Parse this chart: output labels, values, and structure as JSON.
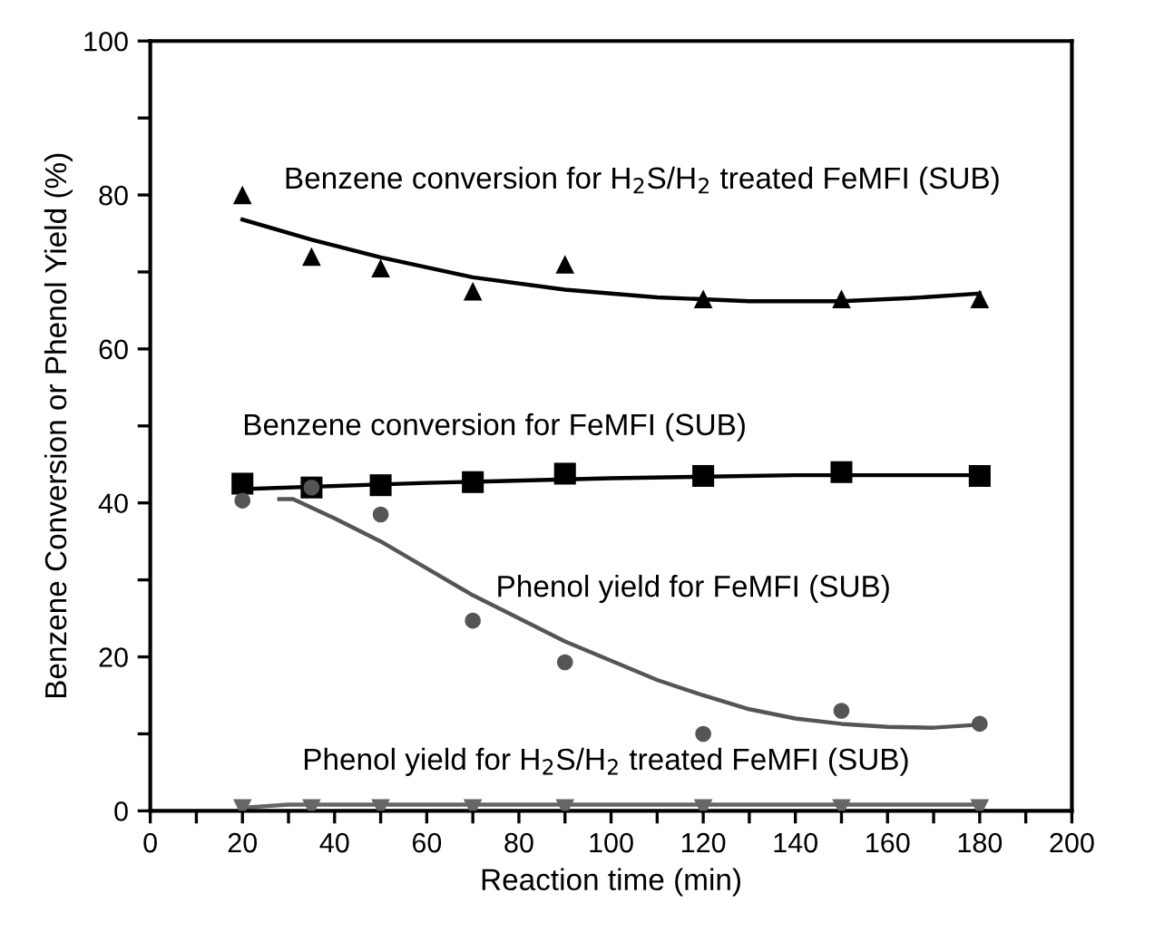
{
  "chart_data": {
    "type": "scatter",
    "xlabel": "Reaction time (min)",
    "ylabel": "Benzene Conversion or Phenol Yield (%)",
    "xlim": [
      0,
      200
    ],
    "ylim": [
      0,
      100
    ],
    "xticks": [
      0,
      {
        "value": 10,
        "label": null
      },
      20,
      {
        "value": 30,
        "label": null
      },
      40,
      {
        "value": 50,
        "label": null
      },
      60,
      {
        "value": 70,
        "label": null
      },
      80,
      {
        "value": 90,
        "label": null
      },
      100,
      {
        "value": 110,
        "label": null
      },
      120,
      {
        "value": 130,
        "label": null
      },
      140,
      {
        "value": 150,
        "label": null
      },
      160,
      {
        "value": 170,
        "label": null
      },
      180,
      {
        "value": 190,
        "label": null
      },
      200
    ],
    "yticks": [
      0,
      {
        "value": 10,
        "label": null
      },
      20,
      {
        "value": 30,
        "label": null
      },
      40,
      {
        "value": 50,
        "label": null
      },
      60,
      {
        "value": 70,
        "label": null
      },
      80,
      {
        "value": 90,
        "label": null
      },
      100
    ],
    "grid": false,
    "legend": false,
    "series": [
      {
        "marker": "triangle",
        "color": "#000000",
        "x": [
          20,
          35,
          50,
          70,
          90,
          120,
          150,
          180
        ],
        "values": [
          80,
          72,
          70.5,
          67.5,
          71,
          66.5,
          66.5,
          66.5
        ]
      },
      {
        "marker": "square",
        "color": "#000000",
        "x": [
          20,
          35,
          50,
          70,
          90,
          120,
          150,
          180
        ],
        "values": [
          42.5,
          42,
          42.3,
          42.7,
          43.8,
          43.5,
          44,
          43.5
        ]
      },
      {
        "marker": "circle",
        "color": "#555555",
        "x": [
          20,
          35,
          50,
          70,
          90,
          120,
          150,
          180
        ],
        "values": [
          40.3,
          42,
          38.5,
          24.7,
          19.3,
          10,
          13,
          11.3
        ]
      },
      {
        "marker": "triangle_down",
        "color": "#666666",
        "x": [
          20,
          35,
          50,
          70,
          90,
          120,
          150,
          180
        ],
        "values": [
          0.3,
          0.3,
          0.3,
          0.3,
          0.3,
          0.3,
          0.3,
          0.3
        ]
      },
      {
        "type": "line",
        "marker": "none",
        "color": "#000000",
        "x": [
          20,
          35,
          50,
          70,
          90,
          110,
          130,
          150,
          165,
          180
        ],
        "values": [
          76.8,
          74.2,
          71.9,
          69.3,
          67.7,
          66.7,
          66.2,
          66.2,
          66.6,
          67.2
        ]
      },
      {
        "type": "line",
        "marker": "none",
        "color": "#000000",
        "x": [
          20,
          60,
          100,
          140,
          180
        ],
        "values": [
          41.8,
          42.6,
          43.2,
          43.6,
          43.6
        ]
      },
      {
        "type": "line",
        "marker": "none",
        "color": "#555555",
        "x": [
          28,
          31,
          40,
          50,
          60,
          70,
          80,
          90,
          100,
          110,
          120,
          130,
          140,
          150,
          160,
          170,
          180
        ],
        "values": [
          40.5,
          40.5,
          38,
          35,
          31.5,
          28,
          25,
          22,
          19.5,
          17,
          15,
          13.2,
          12,
          11.3,
          10.9,
          10.8,
          11.2
        ]
      },
      {
        "type": "line",
        "marker": "none",
        "color": "#666666",
        "x": [
          20,
          30,
          180
        ],
        "values": [
          0.4,
          0.8,
          0.8
        ]
      }
    ],
    "annotations": [
      "Benzene conversion for H$_{2}$S/H$_{2}$ treated FeMFI (SUB)",
      "Benzene conversion for FeMFI (SUB)",
      "Phenol yield for FeMFI (SUB)",
      "Phenol yield for H$_{2}$S/H$_{2}$ treated FeMFI (SUB)"
    ]
  }
}
